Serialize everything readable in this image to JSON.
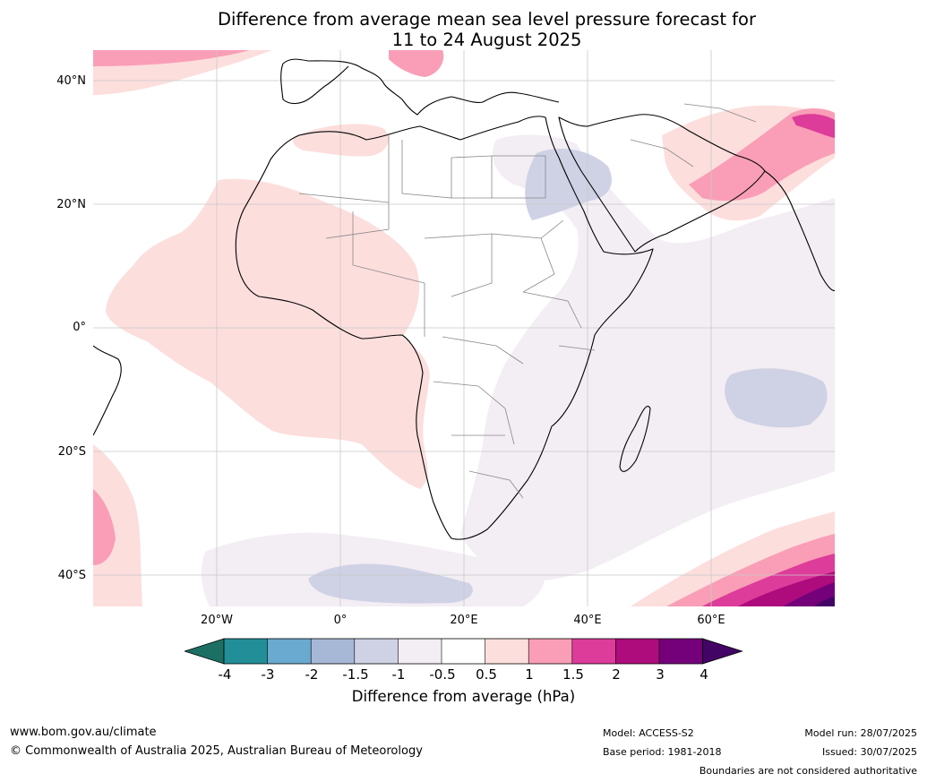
{
  "title_line1": "Difference from average mean sea level pressure forecast for",
  "title_line2": "11 to 24 August 2025",
  "map": {
    "lat_labels": [
      "40°N",
      "20°N",
      "0°",
      "20°S",
      "40°S"
    ],
    "lon_labels": [
      "20°W",
      "0°",
      "20°E",
      "40°E",
      "60°E"
    ]
  },
  "colorbar": {
    "title": "Difference from average (hPa)",
    "ticks": [
      "-4",
      "-3",
      "-2",
      "-1.5",
      "-1",
      "-0.5",
      "0.5",
      "1",
      "1.5",
      "2",
      "3",
      "4"
    ],
    "colors": [
      "#1b6f63",
      "#228e98",
      "#6aa9d0",
      "#a7b8d6",
      "#cfd1e5",
      "#f3edf4",
      "#ffffff",
      "#fcdedd",
      "#f99eb6",
      "#dd3c9a",
      "#ae0c7d",
      "#74007a",
      "#420565"
    ],
    "extend": "both"
  },
  "footer": {
    "website": "www.bom.gov.au/climate",
    "copyright": "© Commonwealth of Australia 2025, Australian Bureau of Meteorology",
    "model": "Model: ACCESS-S2",
    "base_period": "Base period: 1981-2018",
    "model_run": "Model run: 28/07/2025",
    "issued": "Issued: 30/07/2025",
    "disclaimer": "Boundaries are not considered authoritative"
  }
}
